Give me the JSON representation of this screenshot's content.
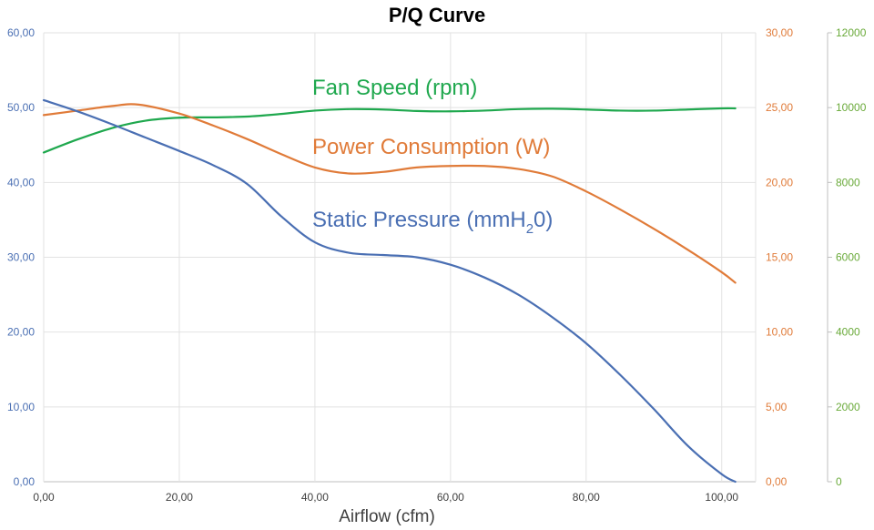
{
  "chart_data": {
    "type": "line",
    "title": "P/Q Curve",
    "xlabel": "Airflow (cfm)",
    "xlim": [
      0,
      105
    ],
    "x_ticks": [
      "0,00",
      "20,00",
      "40,00",
      "60,00",
      "80,00",
      "100,00"
    ],
    "grid": true,
    "axes": {
      "left": {
        "color": "#4a6fb3",
        "ylim": [
          0,
          60
        ],
        "ticks": [
          "0,00",
          "10,00",
          "20,00",
          "30,00",
          "40,00",
          "50,00",
          "60,00"
        ]
      },
      "right": {
        "color": "#e07b39",
        "ylim": [
          0,
          30
        ],
        "ticks": [
          "0,00",
          "5,00",
          "10,00",
          "15,00",
          "20,00",
          "25,00",
          "30,00"
        ]
      },
      "right2": {
        "color": "#6aaa3a",
        "ylim": [
          0,
          12000
        ],
        "ticks": [
          "0",
          "2000",
          "4000",
          "6000",
          "8000",
          "10000",
          "12000"
        ]
      }
    },
    "series": [
      {
        "name": "Fan Speed (rpm)",
        "axis": "right2",
        "color": "#1fa84e",
        "points": [
          [
            0,
            8800
          ],
          [
            5,
            9150
          ],
          [
            10,
            9450
          ],
          [
            15,
            9650
          ],
          [
            20,
            9730
          ],
          [
            25,
            9740
          ],
          [
            30,
            9760
          ],
          [
            35,
            9830
          ],
          [
            40,
            9920
          ],
          [
            45,
            9960
          ],
          [
            50,
            9950
          ],
          [
            55,
            9910
          ],
          [
            60,
            9900
          ],
          [
            65,
            9920
          ],
          [
            70,
            9960
          ],
          [
            75,
            9970
          ],
          [
            80,
            9950
          ],
          [
            85,
            9920
          ],
          [
            90,
            9920
          ],
          [
            95,
            9950
          ],
          [
            100,
            9980
          ],
          [
            102,
            9980
          ]
        ]
      },
      {
        "name": "Power Consumption (W)",
        "axis": "right",
        "color": "#e07b39",
        "points": [
          [
            0,
            24.5
          ],
          [
            5,
            24.8
          ],
          [
            10,
            25.1
          ],
          [
            14,
            25.2
          ],
          [
            20,
            24.6
          ],
          [
            25,
            23.8
          ],
          [
            30,
            22.9
          ],
          [
            35,
            21.9
          ],
          [
            40,
            21.0
          ],
          [
            45,
            20.6
          ],
          [
            50,
            20.7
          ],
          [
            55,
            21.0
          ],
          [
            60,
            21.1
          ],
          [
            65,
            21.1
          ],
          [
            70,
            20.9
          ],
          [
            75,
            20.4
          ],
          [
            80,
            19.4
          ],
          [
            85,
            18.2
          ],
          [
            90,
            16.9
          ],
          [
            95,
            15.5
          ],
          [
            100,
            14.0
          ],
          [
            102,
            13.3
          ]
        ]
      },
      {
        "name": "Static Pressure (mmH",
        "name_sub": "2",
        "name_suffix": "0)",
        "axis": "left",
        "color": "#4a6fb3",
        "points": [
          [
            0,
            51.0
          ],
          [
            5,
            49.5
          ],
          [
            10,
            47.8
          ],
          [
            15,
            46.0
          ],
          [
            20,
            44.2
          ],
          [
            25,
            42.3
          ],
          [
            30,
            39.8
          ],
          [
            35,
            35.5
          ],
          [
            40,
            32.0
          ],
          [
            45,
            30.6
          ],
          [
            50,
            30.3
          ],
          [
            55,
            30.0
          ],
          [
            60,
            29.0
          ],
          [
            65,
            27.3
          ],
          [
            70,
            25.0
          ],
          [
            75,
            22.0
          ],
          [
            80,
            18.5
          ],
          [
            85,
            14.3
          ],
          [
            90,
            9.7
          ],
          [
            95,
            4.8
          ],
          [
            100,
            1.0
          ],
          [
            102,
            0.0
          ]
        ]
      }
    ]
  }
}
